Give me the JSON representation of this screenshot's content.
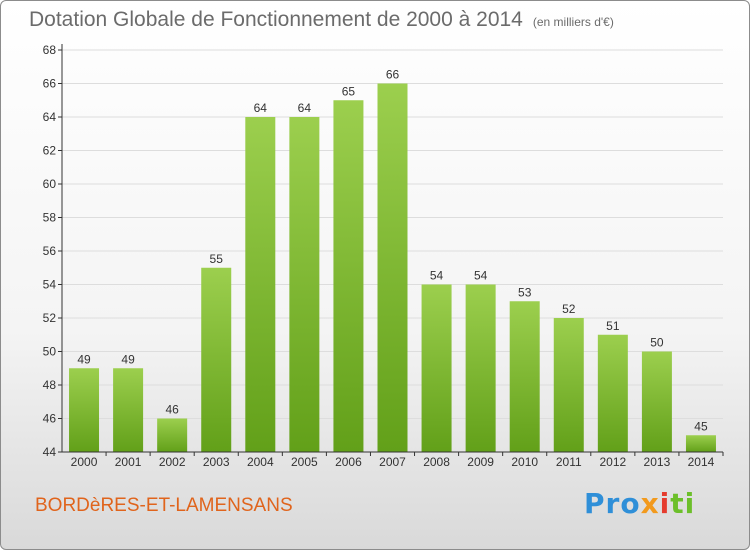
{
  "header": {
    "title": "Dotation Globale de Fonctionnement de 2000 à 2014",
    "subtitle": "(en milliers d'€)"
  },
  "footer": {
    "town": "BORDèRES-ET-LAMENSANS",
    "logo_parts": [
      "Pro",
      "x",
      "i",
      "ti"
    ]
  },
  "colors": {
    "bar_top": "#9ccf4e",
    "bar_bottom": "#62a019",
    "grid": "#dddddd",
    "axis": "#333333",
    "text": "#333333"
  },
  "chart_data": {
    "type": "bar",
    "categories": [
      "2000",
      "2001",
      "2002",
      "2003",
      "2004",
      "2005",
      "2006",
      "2007",
      "2008",
      "2009",
      "2010",
      "2011",
      "2012",
      "2013",
      "2014"
    ],
    "values": [
      49,
      49,
      46,
      55,
      64,
      64,
      65,
      66,
      54,
      54,
      53,
      52,
      51,
      50,
      45
    ],
    "title": "Dotation Globale de Fonctionnement de 2000 à 2014",
    "subtitle": "(en milliers d'€)",
    "ylim": [
      44,
      68
    ],
    "yticks": [
      44,
      46,
      48,
      50,
      52,
      54,
      56,
      58,
      60,
      62,
      64,
      66,
      68
    ],
    "grid": true,
    "legend": "none"
  }
}
